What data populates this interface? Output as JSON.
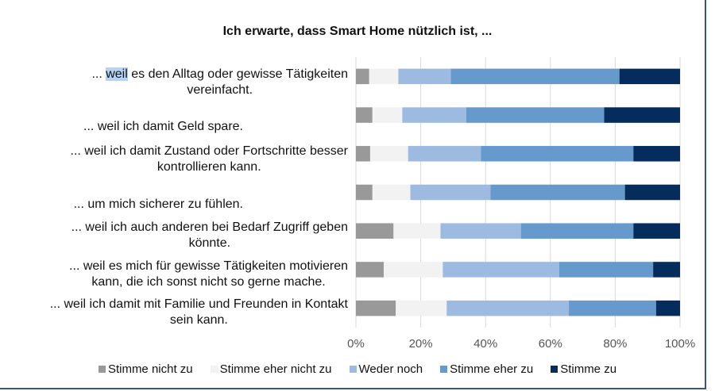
{
  "chart_data": {
    "type": "bar",
    "orientation": "horizontal",
    "stacked": "100%",
    "title": "Ich erwarte, dass Smart Home nützlich ist, ...",
    "categories": [
      "... weil es den Alltag oder gewisse Tätigkeiten vereinfacht.",
      "... weil ich damit Geld spare.",
      "... weil ich damit Zustand oder Fortschritte besser kontrollieren kann.",
      "... um mich sicherer zu fühlen.",
      "... weil ich auch anderen bei Bedarf Zugriff geben könnte.",
      "... weil es mich für gewisse Tätigkeiten motivieren kann, die ich sonst nicht so gerne mache.",
      "... weil ich damit mit Familie und Freunden in Kontakt sein kann."
    ],
    "category_lines": [
      [
        "... ",
        "weil",
        " es den Alltag oder gewisse Tätigkeiten",
        "vereinfacht."
      ],
      [
        "... weil ich damit Geld spare."
      ],
      [
        "... weil ich damit Zustand oder Fortschritte besser",
        "kontrollieren kann."
      ],
      [
        "... um mich sicherer zu fühlen."
      ],
      [
        "... weil ich auch anderen bei Bedarf Zugriff geben",
        "könnte."
      ],
      [
        "... weil es mich für gewisse Tätigkeiten motivieren",
        "kann, die ich sonst nicht so gerne mache."
      ],
      [
        "... weil ich damit mit Familie und Freunden in Kontakt",
        "sein kann."
      ]
    ],
    "series": [
      {
        "name": "Stimme nicht zu",
        "color": "#999999",
        "values": [
          4.1,
          5.1,
          4.4,
          5.1,
          11.6,
          8.6,
          12.3
        ]
      },
      {
        "name": "Stimme eher nicht zu",
        "color": "#f2f2f2",
        "values": [
          9.0,
          9.2,
          11.7,
          11.7,
          14.5,
          18.2,
          15.7
        ]
      },
      {
        "name": "Weder noch",
        "color": "#9dbbe0",
        "values": [
          16.2,
          19.7,
          22.5,
          24.7,
          24.8,
          35.9,
          37.7
        ]
      },
      {
        "name": "Stimme eher zu",
        "color": "#6699cc",
        "values": [
          52.0,
          42.6,
          47.0,
          41.5,
          34.7,
          29.0,
          26.9
        ]
      },
      {
        "name": "Stimme zu",
        "color": "#042c5c",
        "values": [
          18.7,
          23.4,
          14.4,
          17.0,
          14.4,
          8.3,
          7.4
        ]
      }
    ],
    "xlim": [
      0,
      100
    ],
    "xticks": [
      "0%",
      "20%",
      "40%",
      "60%",
      "80%",
      "100%"
    ],
    "grid": "vertical",
    "legend": "bottom",
    "highlighted_word": "weil"
  }
}
